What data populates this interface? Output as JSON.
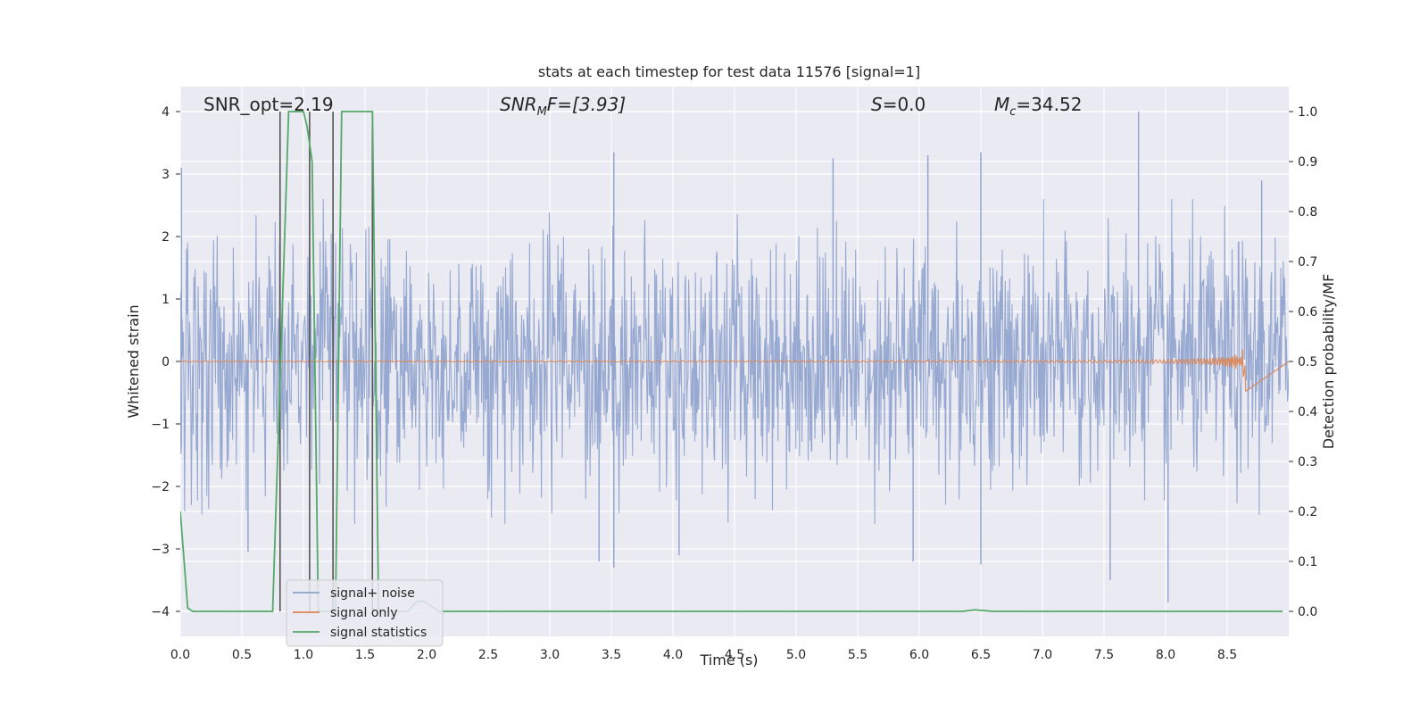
{
  "chart_data": {
    "type": "line",
    "title": "stats at each timestep for test data 11576 [signal=1]",
    "xlabel": "Time (s)",
    "ylabel_left": "Whitened strain",
    "ylabel_right": "Detection probability/MF",
    "xlim": [
      0.0,
      9.0
    ],
    "ylim_left": [
      -4.4,
      4.4
    ],
    "ylim_right": [
      -0.05,
      1.05
    ],
    "x_ticks": [
      "0.0",
      "0.5",
      "1.0",
      "1.5",
      "2.0",
      "2.5",
      "3.0",
      "3.5",
      "4.0",
      "4.5",
      "5.0",
      "5.5",
      "6.0",
      "6.5",
      "7.0",
      "7.5",
      "8.0",
      "8.5"
    ],
    "y_ticks_left": [
      "−4",
      "−3",
      "−2",
      "−1",
      "0",
      "1",
      "2",
      "3",
      "4"
    ],
    "y_ticks_right": [
      "0.0",
      "0.1",
      "0.2",
      "0.3",
      "0.4",
      "0.5",
      "0.6",
      "0.7",
      "0.8",
      "0.9",
      "1.0"
    ],
    "grid": true,
    "legend_position": "lower-left",
    "colors": {
      "background": "#eaeaf2",
      "grid": "#ffffff",
      "noise": "#8ea2cd",
      "signal": "#dd8452",
      "stats": "#55a868",
      "vlines": "#555555"
    },
    "annotations": {
      "snr_opt": "SNR_opt=2.19",
      "snr_mf_main": "SNR",
      "snr_mf_sub": "M",
      "snr_mf_rest": "F=[3.93]",
      "s_main": "S",
      "s_rest": "=0.0",
      "mc_main": "M",
      "mc_sub": "c",
      "mc_rest": "=34.52"
    },
    "series": [
      {
        "name": "signal+ noise",
        "kind": "whitened strain (noise, approx. ±1.6 band with spikes)",
        "peak_events": [
          {
            "x": 0.01,
            "y": 3.1
          },
          {
            "x": 3.52,
            "y": 3.35
          },
          {
            "x": 5.3,
            "y": 3.25
          },
          {
            "x": 6.07,
            "y": 3.3
          },
          {
            "x": 6.5,
            "y": 3.35
          },
          {
            "x": 7.78,
            "y": 4.0
          },
          {
            "x": 8.78,
            "y": 2.9
          },
          {
            "x": 8.02,
            "y": -3.85
          },
          {
            "x": 7.55,
            "y": -3.5
          },
          {
            "x": 3.52,
            "y": -3.3
          },
          {
            "x": 0.55,
            "y": -3.05
          },
          {
            "x": 6.5,
            "y": -3.25
          },
          {
            "x": 3.4,
            "y": -3.2
          },
          {
            "x": 4.05,
            "y": -3.1
          },
          {
            "x": 5.95,
            "y": -3.2
          }
        ]
      },
      {
        "name": "signal only",
        "kind": "chirp",
        "x_end": 8.65,
        "peak_amplitude": 0.5
      },
      {
        "name": "signal statistics",
        "x": [
          0.0,
          0.06,
          0.1,
          0.75,
          0.88,
          1.0,
          1.03,
          1.07,
          1.12,
          1.26,
          1.31,
          1.56,
          1.61,
          1.85,
          1.92,
          1.98,
          2.1,
          6.35,
          6.45,
          6.6,
          8.95
        ],
        "y": [
          0.2,
          0.007,
          0.0,
          0.0,
          1.0,
          1.0,
          0.97,
          0.9,
          0.0,
          0.0,
          1.0,
          1.0,
          0.0,
          0.0,
          0.02,
          0.02,
          0.0,
          0.0,
          0.003,
          0.0,
          0.0
        ]
      }
    ],
    "vertical_markers_x": [
      0.81,
      1.05,
      1.24,
      1.56
    ]
  }
}
